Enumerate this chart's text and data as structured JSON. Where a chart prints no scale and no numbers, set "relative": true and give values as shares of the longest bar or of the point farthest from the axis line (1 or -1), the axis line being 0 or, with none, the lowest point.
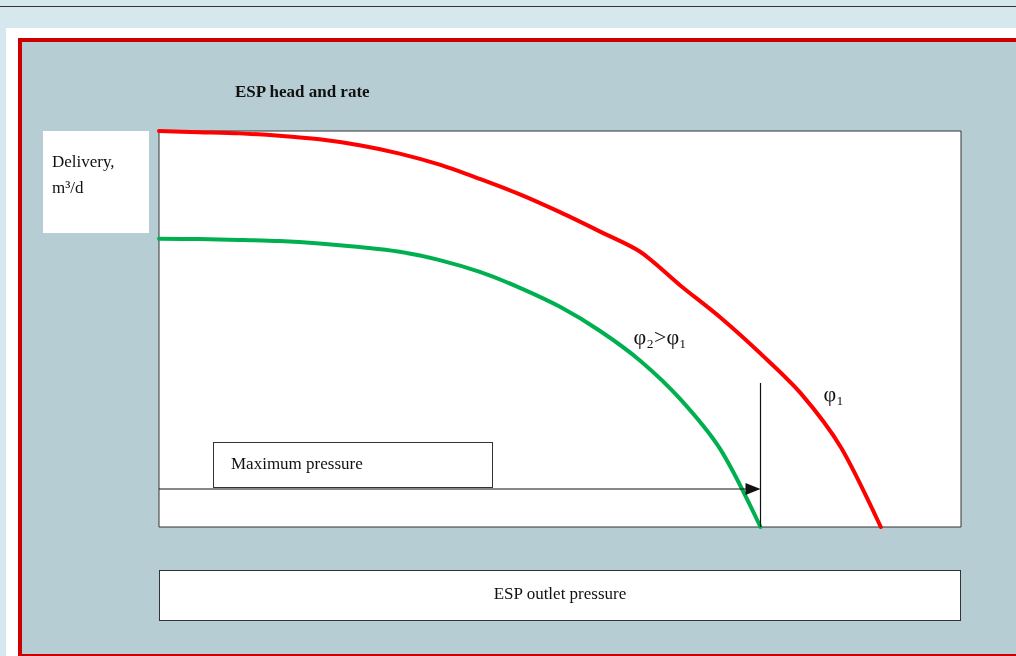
{
  "chart_data": {
    "type": "line",
    "title": "ESP head and rate",
    "ylabel": "Delivery, m³/d",
    "xlabel": "ESP outlet pressure",
    "relative": true,
    "legend": false,
    "grid": false,
    "marker": "none",
    "annotations": [
      "Maximum pressure"
    ],
    "categories": [
      null,
      null,
      null,
      null,
      null,
      null,
      null,
      null,
      null,
      null,
      null,
      null,
      null,
      null,
      null,
      null,
      null,
      null,
      null,
      null,
      null
    ],
    "series": [
      {
        "name": "φ₁",
        "color": "#ff0000",
        "values": [
          1,
          0.997,
          0.994,
          0.988,
          0.979,
          0.964,
          0.943,
          0.915,
          0.879,
          0.84,
          0.795,
          0.746,
          0.695,
          0.61,
          0.529,
          0.438,
          0.338,
          0.202,
          0,
          null,
          null
        ]
      },
      {
        "name": "φ₂>φ₁",
        "color": "#00b050",
        "values": [
          0.728,
          0.727,
          0.725,
          0.722,
          0.716,
          0.707,
          0.695,
          0.674,
          0.644,
          0.604,
          0.556,
          0.495,
          0.42,
          0.323,
          0.196,
          0,
          null,
          null,
          null,
          null,
          null
        ]
      }
    ]
  }
}
